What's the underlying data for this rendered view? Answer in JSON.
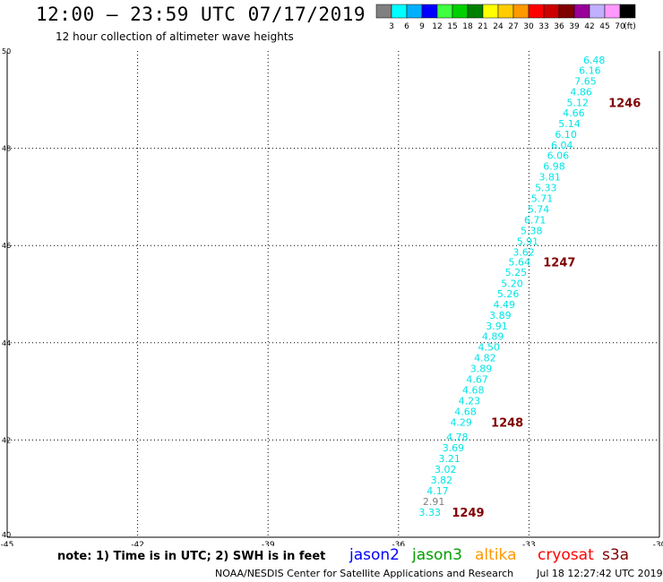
{
  "title": "12:00 — 23:59 UTC 07/17/2019",
  "subtitle": "12 hour collection of altimeter wave heights",
  "color_scale": {
    "unit": "(ft)",
    "swatches": [
      {
        "color": "#808080",
        "label": "3"
      },
      {
        "color": "#00ffff",
        "label": "6"
      },
      {
        "color": "#00b0ff",
        "label": "9"
      },
      {
        "color": "#0000ff",
        "label": "12"
      },
      {
        "color": "#40ff40",
        "label": "15"
      },
      {
        "color": "#00d000",
        "label": "18"
      },
      {
        "color": "#008000",
        "label": "21"
      },
      {
        "color": "#ffff00",
        "label": "24"
      },
      {
        "color": "#ffcc00",
        "label": "27"
      },
      {
        "color": "#ff9900",
        "label": "30"
      },
      {
        "color": "#ff0000",
        "label": "33"
      },
      {
        "color": "#cc0000",
        "label": "36"
      },
      {
        "color": "#800000",
        "label": "39"
      },
      {
        "color": "#990099",
        "label": "42"
      },
      {
        "color": "#c0b0ff",
        "label": "45"
      },
      {
        "color": "#ff99ff",
        "label": "70"
      },
      {
        "color": "#000000",
        "label": ""
      }
    ]
  },
  "note": "note: 1) Time is in UTC; 2) SWH is in feet",
  "satellites": [
    {
      "name": "jason2",
      "color": "#0000ff"
    },
    {
      "name": "jason3",
      "color": "#00a000"
    },
    {
      "name": "altika",
      "color": "#ff9900"
    },
    {
      "name": "cryosat",
      "color": "#ff0000"
    },
    {
      "name": "s3a",
      "color": "#800000"
    }
  ],
  "footer": {
    "credit": "NOAA/NESDIS Center for Satellite Applications and Research",
    "timestamp": "Jul 18 12:27:42 UTC 2019"
  },
  "chart_data": {
    "type": "scatter",
    "xlim": [
      -45,
      -30
    ],
    "ylim": [
      40,
      50
    ],
    "x_ticks": [
      -45,
      -42,
      -39,
      -36,
      -33,
      -30
    ],
    "y_ticks": [
      40,
      42,
      44,
      46,
      48,
      50
    ],
    "x_tick_labels": [
      "-45",
      "-42",
      "-39",
      "-36",
      "-33",
      "-30"
    ],
    "y_tick_labels": [
      "40",
      "42",
      "44",
      "46",
      "48",
      "50"
    ],
    "grid": true,
    "label_color": "#00e5e5",
    "low_label_color": "#808080",
    "wave_heights": [
      {
        "lon": -31.5,
        "lat": 49.82,
        "swh": "6.48"
      },
      {
        "lon": -31.6,
        "lat": 49.6,
        "swh": "6.16"
      },
      {
        "lon": -31.7,
        "lat": 49.38,
        "swh": "7.65"
      },
      {
        "lon": -31.8,
        "lat": 49.16,
        "swh": "4.86"
      },
      {
        "lon": -31.88,
        "lat": 48.94,
        "swh": "5.12"
      },
      {
        "lon": -31.97,
        "lat": 48.73,
        "swh": "4.66"
      },
      {
        "lon": -32.07,
        "lat": 48.51,
        "swh": "5.14"
      },
      {
        "lon": -32.15,
        "lat": 48.29,
        "swh": "6.10"
      },
      {
        "lon": -32.24,
        "lat": 48.07,
        "swh": "6.04"
      },
      {
        "lon": -32.33,
        "lat": 47.85,
        "swh": "6.06"
      },
      {
        "lon": -32.42,
        "lat": 47.63,
        "swh": "6.98"
      },
      {
        "lon": -32.52,
        "lat": 47.41,
        "swh": "3.81"
      },
      {
        "lon": -32.61,
        "lat": 47.19,
        "swh": "5.33"
      },
      {
        "lon": -32.7,
        "lat": 46.97,
        "swh": "5.71"
      },
      {
        "lon": -32.78,
        "lat": 46.75,
        "swh": "5.74"
      },
      {
        "lon": -32.86,
        "lat": 46.53,
        "swh": "6.71"
      },
      {
        "lon": -32.94,
        "lat": 46.31,
        "swh": "5.38"
      },
      {
        "lon": -33.03,
        "lat": 46.09,
        "swh": "5.91"
      },
      {
        "lon": -33.12,
        "lat": 45.87,
        "swh": "3.62"
      },
      {
        "lon": -33.22,
        "lat": 45.66,
        "swh": "5.64"
      },
      {
        "lon": -33.3,
        "lat": 45.45,
        "swh": "5.25"
      },
      {
        "lon": -33.39,
        "lat": 45.22,
        "swh": "5.20"
      },
      {
        "lon": -33.48,
        "lat": 45.01,
        "swh": "5.26"
      },
      {
        "lon": -33.57,
        "lat": 44.79,
        "swh": "4.49"
      },
      {
        "lon": -33.66,
        "lat": 44.57,
        "swh": "3.89"
      },
      {
        "lon": -33.74,
        "lat": 44.35,
        "swh": "3.91"
      },
      {
        "lon": -33.83,
        "lat": 44.13,
        "swh": "4.89"
      },
      {
        "lon": -33.92,
        "lat": 43.91,
        "swh": "4.50"
      },
      {
        "lon": -34.01,
        "lat": 43.69,
        "swh": "4.82"
      },
      {
        "lon": -34.1,
        "lat": 43.47,
        "swh": "3.89"
      },
      {
        "lon": -34.19,
        "lat": 43.25,
        "swh": "4.67"
      },
      {
        "lon": -34.28,
        "lat": 43.03,
        "swh": "4.68"
      },
      {
        "lon": -34.37,
        "lat": 42.81,
        "swh": "4.23"
      },
      {
        "lon": -34.46,
        "lat": 42.59,
        "swh": "4.68"
      },
      {
        "lon": -34.56,
        "lat": 42.37,
        "swh": "4.29"
      },
      {
        "lon": -34.65,
        "lat": 42.06,
        "swh": "4.78"
      },
      {
        "lon": -34.74,
        "lat": 41.84,
        "swh": "3.69"
      },
      {
        "lon": -34.83,
        "lat": 41.62,
        "swh": "3.21"
      },
      {
        "lon": -34.92,
        "lat": 41.4,
        "swh": "3.02"
      },
      {
        "lon": -35.01,
        "lat": 41.18,
        "swh": "3.82"
      },
      {
        "lon": -35.1,
        "lat": 40.96,
        "swh": "4.17"
      },
      {
        "lon": -35.19,
        "lat": 40.74,
        "swh": "2.91",
        "low": true
      },
      {
        "lon": -35.28,
        "lat": 40.52,
        "swh": "3.33"
      }
    ],
    "pass_labels": [
      {
        "lon": -30.8,
        "lat": 48.94,
        "label": "1246"
      },
      {
        "lon": -32.3,
        "lat": 45.66,
        "label": "1247"
      },
      {
        "lon": -33.5,
        "lat": 42.37,
        "label": "1248"
      },
      {
        "lon": -34.4,
        "lat": 40.52,
        "label": "1249"
      }
    ],
    "pass_label_color": "#800000"
  }
}
